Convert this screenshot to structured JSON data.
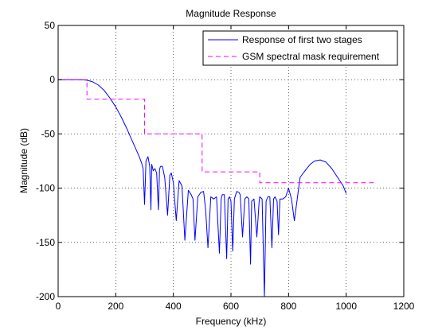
{
  "chart_data": {
    "type": "line",
    "title": "Magnitude Response",
    "xlabel": "Frequency (kHz)",
    "ylabel": "Magnitude (dB)",
    "xlim": [
      0,
      1200
    ],
    "ylim": [
      -200,
      50
    ],
    "xticks": [
      0,
      200,
      400,
      600,
      800,
      1000,
      1200
    ],
    "yticks": [
      -200,
      -150,
      -100,
      -50,
      0,
      50
    ],
    "grid": true,
    "legend_position": "top-right",
    "series": [
      {
        "name": "Response of first two stages",
        "color": "#0000ff",
        "style": "solid",
        "x": [
          0,
          40,
          80,
          100,
          120,
          140,
          160,
          180,
          200,
          220,
          240,
          260,
          280,
          290,
          295,
          300,
          305,
          312,
          318,
          322,
          325,
          330,
          336,
          342,
          348,
          352,
          355,
          362,
          370,
          380,
          388,
          393,
          400,
          410,
          420,
          430,
          440,
          452,
          462,
          468,
          475,
          485,
          495,
          505,
          512,
          520,
          530,
          540,
          550,
          560,
          566,
          570,
          577,
          585,
          590,
          595,
          600,
          606,
          612,
          620,
          628,
          632,
          640,
          648,
          655,
          662,
          668,
          672,
          680,
          690,
          698,
          700,
          708,
          716,
          722,
          728,
          735,
          742,
          748,
          753,
          760,
          765,
          770,
          780,
          790,
          800,
          810,
          820,
          840,
          860,
          875,
          890,
          910,
          930,
          950,
          970,
          990,
          1000
        ],
        "y": [
          0,
          0,
          0,
          -0.5,
          -2,
          -5,
          -10,
          -17,
          -25,
          -35,
          -46,
          -58,
          -70,
          -77,
          -82,
          -115,
          -75,
          -71,
          -80,
          -120,
          -78,
          -84,
          -82,
          -86,
          -120,
          -83,
          -80,
          -80,
          -90,
          -125,
          -88,
          -86,
          -95,
          -130,
          -93,
          -98,
          -148,
          -102,
          -106,
          -110,
          -148,
          -108,
          -104,
          -103,
          -120,
          -155,
          -108,
          -110,
          -108,
          -160,
          -110,
          -106,
          -106,
          -165,
          -110,
          -108,
          -112,
          -158,
          -110,
          -103,
          -104,
          -106,
          -145,
          -110,
          -108,
          -110,
          -170,
          -112,
          -110,
          -145,
          -112,
          -108,
          -110,
          -200,
          -112,
          -108,
          -108,
          -155,
          -110,
          -108,
          -112,
          -143,
          -110,
          -110,
          -108,
          -100,
          -110,
          -130,
          -90,
          -83,
          -78,
          -75,
          -74,
          -76,
          -82,
          -90,
          -98,
          -105
        ]
      },
      {
        "name": "GSM spectral mask requirement",
        "color": "#ff00ff",
        "style": "dashed",
        "x": [
          0,
          100,
          100,
          300,
          300,
          500,
          500,
          700,
          700,
          1100
        ],
        "y": [
          0,
          0,
          -18,
          -18,
          -50,
          -50,
          -85,
          -85,
          -95,
          -95
        ]
      }
    ]
  }
}
